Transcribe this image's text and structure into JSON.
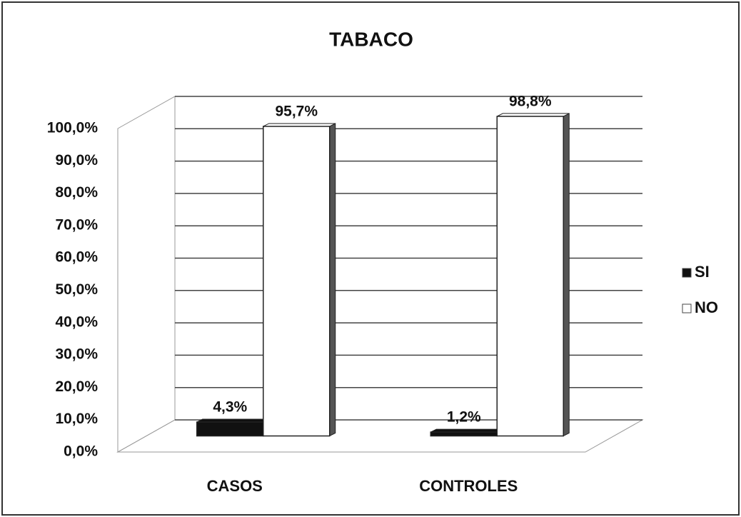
{
  "chart_data": {
    "type": "bar",
    "title": "TABACO",
    "categories": [
      "CASOS",
      "CONTROLES"
    ],
    "series": [
      {
        "name": "SI",
        "color": "#111111",
        "values": [
          4.3,
          1.2
        ],
        "value_labels": [
          "4,3%",
          "1,2%"
        ]
      },
      {
        "name": "NO",
        "color": "#ffffff",
        "values": [
          95.7,
          98.8
        ],
        "value_labels": [
          "95,7%",
          "98,8%"
        ]
      }
    ],
    "ylim": [
      0,
      100
    ],
    "yticks": [
      {
        "value": 0,
        "label": "0,0%"
      },
      {
        "value": 10,
        "label": "10,0%"
      },
      {
        "value": 20,
        "label": "20,0%"
      },
      {
        "value": 30,
        "label": "30,0%"
      },
      {
        "value": 40,
        "label": "40,0%"
      },
      {
        "value": 50,
        "label": "50,0%"
      },
      {
        "value": 60,
        "label": "60,0%"
      },
      {
        "value": 70,
        "label": "70,0%"
      },
      {
        "value": 80,
        "label": "80,0%"
      },
      {
        "value": 90,
        "label": "90,0%"
      },
      {
        "value": 100,
        "label": "100,0%"
      }
    ],
    "grid": true,
    "legend": "right"
  }
}
